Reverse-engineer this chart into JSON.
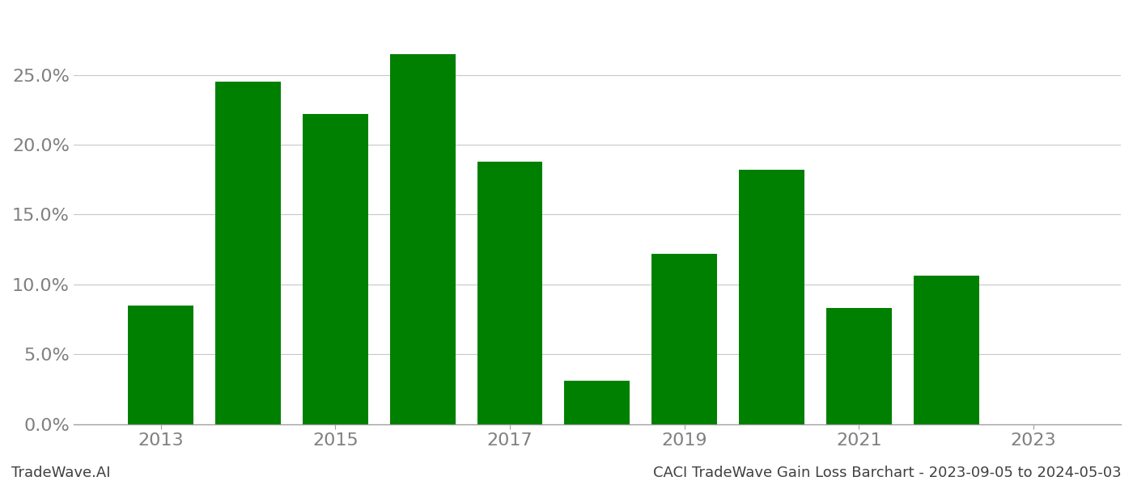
{
  "years": [
    2013,
    2014,
    2015,
    2016,
    2017,
    2018,
    2019,
    2020,
    2021,
    2022
  ],
  "values": [
    0.085,
    0.245,
    0.222,
    0.265,
    0.188,
    0.031,
    0.122,
    0.182,
    0.083,
    0.106
  ],
  "bar_color": "#008000",
  "background_color": "#ffffff",
  "tick_color": "#808080",
  "grid_color": "#c8c8c8",
  "xlim": [
    2012.0,
    2024.0
  ],
  "ylim": [
    0.0,
    0.295
  ],
  "yticks": [
    0.0,
    0.05,
    0.1,
    0.15,
    0.2,
    0.25
  ],
  "xtick_labels": [
    "2013",
    "2015",
    "2017",
    "2019",
    "2021",
    "2023"
  ],
  "xtick_positions": [
    2013,
    2015,
    2017,
    2019,
    2021,
    2023
  ],
  "footer_left": "TradeWave.AI",
  "footer_right": "CACI TradeWave Gain Loss Barchart - 2023-09-05 to 2024-05-03",
  "bar_width": 0.75,
  "figsize": [
    14.0,
    6.0
  ],
  "dpi": 100
}
